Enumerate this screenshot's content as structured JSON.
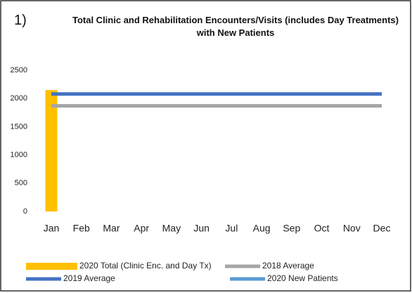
{
  "chart_data": {
    "type": "bar_line",
    "label": "1)",
    "title": "Total Clinic and Rehabilitation Encounters/Visits (includes Day Treatments) with New Patients",
    "categories": [
      "Jan",
      "Feb",
      "Mar",
      "Apr",
      "May",
      "Jun",
      "Jul",
      "Aug",
      "Sep",
      "Oct",
      "Nov",
      "Dec"
    ],
    "ylim": [
      0,
      2500
    ],
    "yticks": [
      0,
      500,
      1000,
      1500,
      2000,
      2500
    ],
    "grid": false,
    "series": [
      {
        "name": "2020 Total (Clinic Enc. and Day Tx)",
        "kind": "bar",
        "color": "#ffc000",
        "values": [
          2150,
          null,
          null,
          null,
          null,
          null,
          null,
          null,
          null,
          null,
          null,
          null
        ]
      },
      {
        "name": "2018 Average",
        "kind": "line",
        "color": "#a5a5a5",
        "values": [
          1870,
          1870,
          1870,
          1870,
          1870,
          1870,
          1870,
          1870,
          1870,
          1870,
          1870,
          1870
        ]
      },
      {
        "name": "2019 Average",
        "kind": "line",
        "color": "#4472c4",
        "values": [
          2080,
          2080,
          2080,
          2080,
          2080,
          2080,
          2080,
          2080,
          2080,
          2080,
          2080,
          2080
        ]
      },
      {
        "name": "2020 New Patients",
        "kind": "line",
        "color": "#5b9bd5",
        "values": [
          null,
          null,
          null,
          null,
          null,
          null,
          null,
          null,
          null,
          null,
          null,
          null
        ]
      }
    ]
  }
}
